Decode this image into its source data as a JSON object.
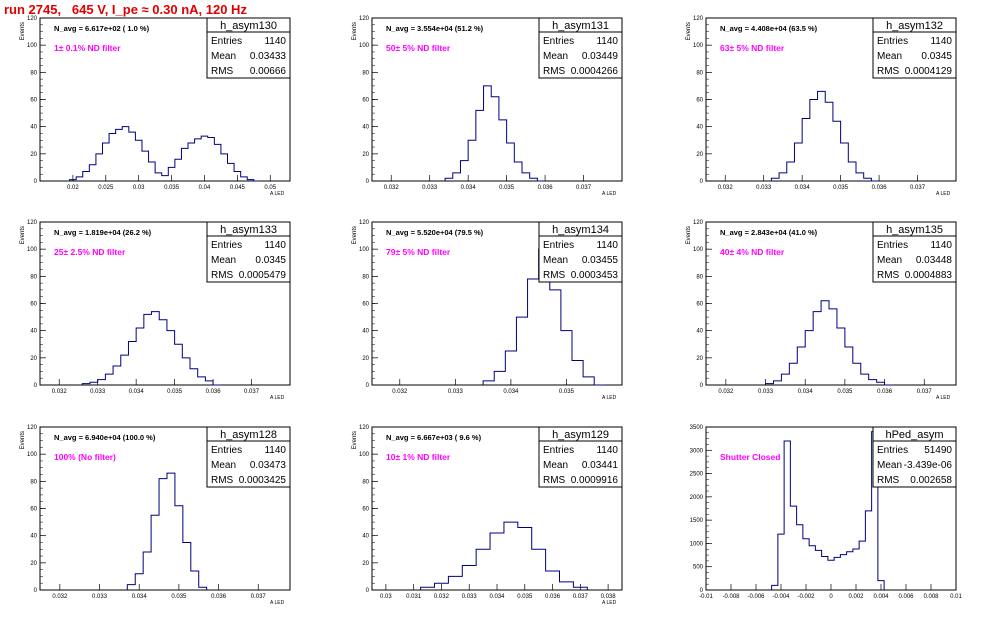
{
  "header": {
    "run_title": "run 2745,   645 V, I_pe ≈ 0.30 nA, 120 Hz"
  },
  "colors": {
    "histogram": "#000080",
    "annotation": "#ff00ff",
    "title": "#e00000",
    "frame": "#000000"
  },
  "chart_data": [
    {
      "type": "bar",
      "name": "h_asym130",
      "ylabel": "Events",
      "xlabel": "A_LED",
      "xlim": [
        0.015,
        0.053
      ],
      "ylim": [
        0,
        120
      ],
      "xticks": [
        "0.02",
        "0.025",
        "0.03",
        "0.035",
        "0.04",
        "0.045",
        "0.05"
      ],
      "xtick_values": [
        0.02,
        0.025,
        0.03,
        0.035,
        0.04,
        0.045,
        0.05
      ],
      "yticks": [
        "0",
        "20",
        "40",
        "60",
        "80",
        "100",
        "120"
      ],
      "navg": "N_avg = 6.617e+02 ( 1.0 %)",
      "filter_label": "1± 0.1% ND filter",
      "stats": {
        "title": "h_asym130",
        "rows": [
          [
            "Entries",
            "1140"
          ],
          [
            "Mean",
            "0.03433"
          ],
          [
            "RMS",
            "0.00666"
          ]
        ]
      },
      "hist": {
        "x": [
          0.02,
          0.021,
          0.022,
          0.023,
          0.024,
          0.025,
          0.026,
          0.027,
          0.028,
          0.029,
          0.03,
          0.031,
          0.032,
          0.033,
          0.034,
          0.035,
          0.036,
          0.037,
          0.038,
          0.039,
          0.04,
          0.041,
          0.042,
          0.043,
          0.044,
          0.045,
          0.046,
          0.047,
          0.048
        ],
        "y": [
          1,
          3,
          7,
          12,
          20,
          28,
          35,
          38,
          40,
          36,
          30,
          22,
          14,
          6,
          4,
          10,
          16,
          24,
          28,
          31,
          33,
          32,
          27,
          20,
          13,
          7,
          3,
          1,
          0
        ]
      }
    },
    {
      "type": "bar",
      "name": "h_asym131",
      "ylabel": "Events",
      "xlabel": "A_LED",
      "xlim": [
        0.0315,
        0.038
      ],
      "ylim": [
        0,
        120
      ],
      "xticks": [
        "0.032",
        "0.033",
        "0.034",
        "0.035",
        "0.036",
        "0.037"
      ],
      "xtick_values": [
        0.032,
        0.033,
        0.034,
        0.035,
        0.036,
        0.037
      ],
      "yticks": [
        "0",
        "20",
        "40",
        "60",
        "80",
        "100",
        "120"
      ],
      "navg": "N_avg = 3.554e+04 (51.2 %)",
      "filter_label": "50± 5% ND filter",
      "stats": {
        "title": "h_asym131",
        "rows": [
          [
            "Entries",
            "1140"
          ],
          [
            "Mean",
            "0.03449"
          ],
          [
            "RMS",
            "0.0004266"
          ]
        ]
      },
      "hist": {
        "x": [
          0.0335,
          0.0337,
          0.0339,
          0.0341,
          0.0343,
          0.0345,
          0.0347,
          0.0349,
          0.0351,
          0.0353,
          0.0355,
          0.0357,
          0.0359
        ],
        "y": [
          2,
          6,
          15,
          30,
          52,
          70,
          62,
          45,
          28,
          14,
          6,
          2,
          0
        ]
      }
    },
    {
      "type": "bar",
      "name": "h_asym132",
      "ylabel": "Events",
      "xlabel": "A_LED",
      "xlim": [
        0.0315,
        0.038
      ],
      "ylim": [
        0,
        120
      ],
      "xticks": [
        "0.032",
        "0.033",
        "0.034",
        "0.035",
        "0.036",
        "0.037"
      ],
      "xtick_values": [
        0.032,
        0.033,
        0.034,
        0.035,
        0.036,
        0.037
      ],
      "yticks": [
        "0",
        "20",
        "40",
        "60",
        "80",
        "100",
        "120"
      ],
      "navg": "N_avg = 4.408e+04 (63.5 %)",
      "filter_label": "63± 5% ND filter",
      "stats": {
        "title": "h_asym132",
        "rows": [
          [
            "Entries",
            "1140"
          ],
          [
            "Mean",
            "0.0345"
          ],
          [
            "RMS",
            "0.0004129"
          ]
        ]
      },
      "hist": {
        "x": [
          0.0333,
          0.0335,
          0.0337,
          0.0339,
          0.0341,
          0.0343,
          0.0345,
          0.0347,
          0.0349,
          0.0351,
          0.0353,
          0.0355,
          0.0357,
          0.0359
        ],
        "y": [
          2,
          6,
          14,
          28,
          46,
          60,
          66,
          58,
          44,
          28,
          14,
          6,
          2,
          0
        ]
      }
    },
    {
      "type": "bar",
      "name": "h_asym133",
      "ylabel": "Events",
      "xlabel": "A_LED",
      "xlim": [
        0.0315,
        0.038
      ],
      "ylim": [
        0,
        120
      ],
      "xticks": [
        "0.032",
        "0.033",
        "0.034",
        "0.035",
        "0.036",
        "0.037"
      ],
      "xtick_values": [
        0.032,
        0.033,
        0.034,
        0.035,
        0.036,
        0.037
      ],
      "yticks": [
        "0",
        "20",
        "40",
        "60",
        "80",
        "100",
        "120"
      ],
      "navg": "N_avg = 1.819e+04 (26.2 %)",
      "filter_label": "25± 2.5% ND filter",
      "stats": {
        "title": "h_asym133",
        "rows": [
          [
            "Entries",
            "1140"
          ],
          [
            "Mean",
            "0.0345"
          ],
          [
            "RMS",
            "0.0005479"
          ]
        ]
      },
      "hist": {
        "x": [
          0.0327,
          0.0329,
          0.0331,
          0.0333,
          0.0335,
          0.0337,
          0.0339,
          0.0341,
          0.0343,
          0.0345,
          0.0347,
          0.0349,
          0.0351,
          0.0353,
          0.0355,
          0.0357,
          0.0359,
          0.0361
        ],
        "y": [
          1,
          2,
          4,
          8,
          14,
          22,
          32,
          42,
          52,
          54,
          48,
          40,
          30,
          20,
          12,
          6,
          3,
          0
        ]
      }
    },
    {
      "type": "bar",
      "name": "h_asym134",
      "ylabel": "Events",
      "xlabel": "A_LED",
      "xlim": [
        0.0315,
        0.036
      ],
      "ylim": [
        0,
        120
      ],
      "xticks": [
        "0.032",
        "0.033",
        "0.034",
        "0.035"
      ],
      "xtick_values": [
        0.032,
        0.033,
        0.034,
        0.035
      ],
      "yticks": [
        "0",
        "20",
        "40",
        "60",
        "80",
        "100",
        "120"
      ],
      "navg": "N_avg = 5.520e+04 (79.5 %)",
      "filter_label": "79± 5% ND filter",
      "stats": {
        "title": "h_asym134",
        "rows": [
          [
            "Entries",
            "1140"
          ],
          [
            "Mean",
            "0.03455"
          ],
          [
            "RMS",
            "0.0003453"
          ]
        ]
      },
      "hist": {
        "x": [
          0.0336,
          0.0338,
          0.034,
          0.0342,
          0.0344,
          0.0346,
          0.0348,
          0.035,
          0.0352,
          0.0354,
          0.0356
        ],
        "y": [
          3,
          10,
          25,
          50,
          78,
          100,
          70,
          40,
          18,
          6,
          0
        ]
      }
    },
    {
      "type": "bar",
      "name": "h_asym135",
      "ylabel": "Events",
      "xlabel": "A_LED",
      "xlim": [
        0.0315,
        0.0378
      ],
      "ylim": [
        0,
        120
      ],
      "xticks": [
        "0.032",
        "0.033",
        "0.034",
        "0.035",
        "0.036",
        "0.037"
      ],
      "xtick_values": [
        0.032,
        0.033,
        0.034,
        0.035,
        0.036,
        0.037
      ],
      "yticks": [
        "0",
        "20",
        "40",
        "60",
        "80",
        "100",
        "120"
      ],
      "navg": "N_avg = 2.843e+04 (41.0 %)",
      "filter_label": "40± 4% ND filter",
      "stats": {
        "title": "h_asym135",
        "rows": [
          [
            "Entries",
            "1140"
          ],
          [
            "Mean",
            "0.03448"
          ],
          [
            "RMS",
            "0.0004883"
          ]
        ]
      },
      "hist": {
        "x": [
          0.0331,
          0.0333,
          0.0335,
          0.0337,
          0.0339,
          0.0341,
          0.0343,
          0.0345,
          0.0347,
          0.0349,
          0.0351,
          0.0353,
          0.0355,
          0.0357,
          0.0359,
          0.0361
        ],
        "y": [
          1,
          3,
          8,
          16,
          28,
          40,
          54,
          62,
          56,
          42,
          28,
          16,
          8,
          4,
          2,
          0
        ]
      }
    },
    {
      "type": "bar",
      "name": "h_asym128",
      "ylabel": "Events",
      "xlabel": "A_LED",
      "xlim": [
        0.0315,
        0.0378
      ],
      "ylim": [
        0,
        120
      ],
      "xticks": [
        "0.032",
        "0.033",
        "0.034",
        "0.035",
        "0.036",
        "0.037"
      ],
      "xtick_values": [
        0.032,
        0.033,
        0.034,
        0.035,
        0.036,
        0.037
      ],
      "yticks": [
        "0",
        "20",
        "40",
        "60",
        "80",
        "100",
        "120"
      ],
      "navg": "N_avg = 6.940e+04 (100.0 %)",
      "filter_label": "100% (No filter)",
      "stats": {
        "title": "h_asym128",
        "rows": [
          [
            "Entries",
            "1140"
          ],
          [
            "Mean",
            "0.03473"
          ],
          [
            "RMS",
            "0.0003425"
          ]
        ]
      },
      "hist": {
        "x": [
          0.0338,
          0.034,
          0.0342,
          0.0344,
          0.0346,
          0.0348,
          0.035,
          0.0352,
          0.0354,
          0.0356
        ],
        "y": [
          4,
          12,
          28,
          55,
          82,
          86,
          62,
          35,
          14,
          2
        ]
      }
    },
    {
      "type": "bar",
      "name": "h_asym129",
      "ylabel": "Events",
      "xlabel": "A_LED",
      "xlim": [
        0.0295,
        0.0385
      ],
      "ylim": [
        0,
        120
      ],
      "xticks": [
        "0.03",
        "0.031",
        "0.032",
        "0.033",
        "0.034",
        "0.035",
        "0.036",
        "0.037",
        "0.038"
      ],
      "xtick_values": [
        0.03,
        0.031,
        0.032,
        0.033,
        0.034,
        0.035,
        0.036,
        0.037,
        0.038
      ],
      "yticks": [
        "0",
        "20",
        "40",
        "60",
        "80",
        "100",
        "120"
      ],
      "navg": "N_avg = 6.667e+03 ( 9.6 %)",
      "filter_label": "10± 1% ND filter",
      "stats": {
        "title": "h_asym129",
        "rows": [
          [
            "Entries",
            "1140"
          ],
          [
            "Mean",
            "0.03441"
          ],
          [
            "RMS",
            "0.0009916"
          ]
        ]
      },
      "hist": {
        "x": [
          0.0315,
          0.032,
          0.0325,
          0.033,
          0.0335,
          0.034,
          0.0345,
          0.035,
          0.0355,
          0.036,
          0.0365,
          0.037
        ],
        "y": [
          2,
          5,
          10,
          18,
          30,
          42,
          50,
          46,
          30,
          14,
          6,
          2
        ]
      }
    },
    {
      "type": "bar",
      "name": "hPed_asym",
      "ylabel": "",
      "xlabel": "",
      "xlim": [
        -0.01,
        0.01
      ],
      "ylim": [
        0,
        3500
      ],
      "xticks": [
        "-0.01",
        "-0.008",
        "-0.006",
        "-0.004",
        "-0.002",
        "0",
        "0.002",
        "0.004",
        "0.006",
        "0.008",
        "0.01"
      ],
      "xtick_values": [
        -0.01,
        -0.008,
        -0.006,
        -0.004,
        -0.002,
        0,
        0.002,
        0.004,
        0.006,
        0.008,
        0.01
      ],
      "yticks": [
        "0",
        "500",
        "1000",
        "1500",
        "2000",
        "2500",
        "3000",
        "3500"
      ],
      "navg": "",
      "filter_label": "Shutter Closed",
      "stats": {
        "title": "hPed_asym",
        "rows": [
          [
            "Entries",
            "51490"
          ],
          [
            "Mean",
            "-3.439e-06"
          ],
          [
            "RMS",
            "0.002658"
          ]
        ]
      },
      "hist": {
        "x": [
          -0.0045,
          -0.004,
          -0.0035,
          -0.003,
          -0.0025,
          -0.002,
          -0.0015,
          -0.001,
          -0.0005,
          0.0,
          0.0005,
          0.001,
          0.0015,
          0.002,
          0.0025,
          0.003,
          0.0035,
          0.004
        ],
        "y": [
          100,
          1200,
          3200,
          1800,
          1400,
          1100,
          950,
          850,
          720,
          640,
          700,
          760,
          820,
          880,
          1050,
          1700,
          3400,
          200
        ]
      }
    }
  ]
}
